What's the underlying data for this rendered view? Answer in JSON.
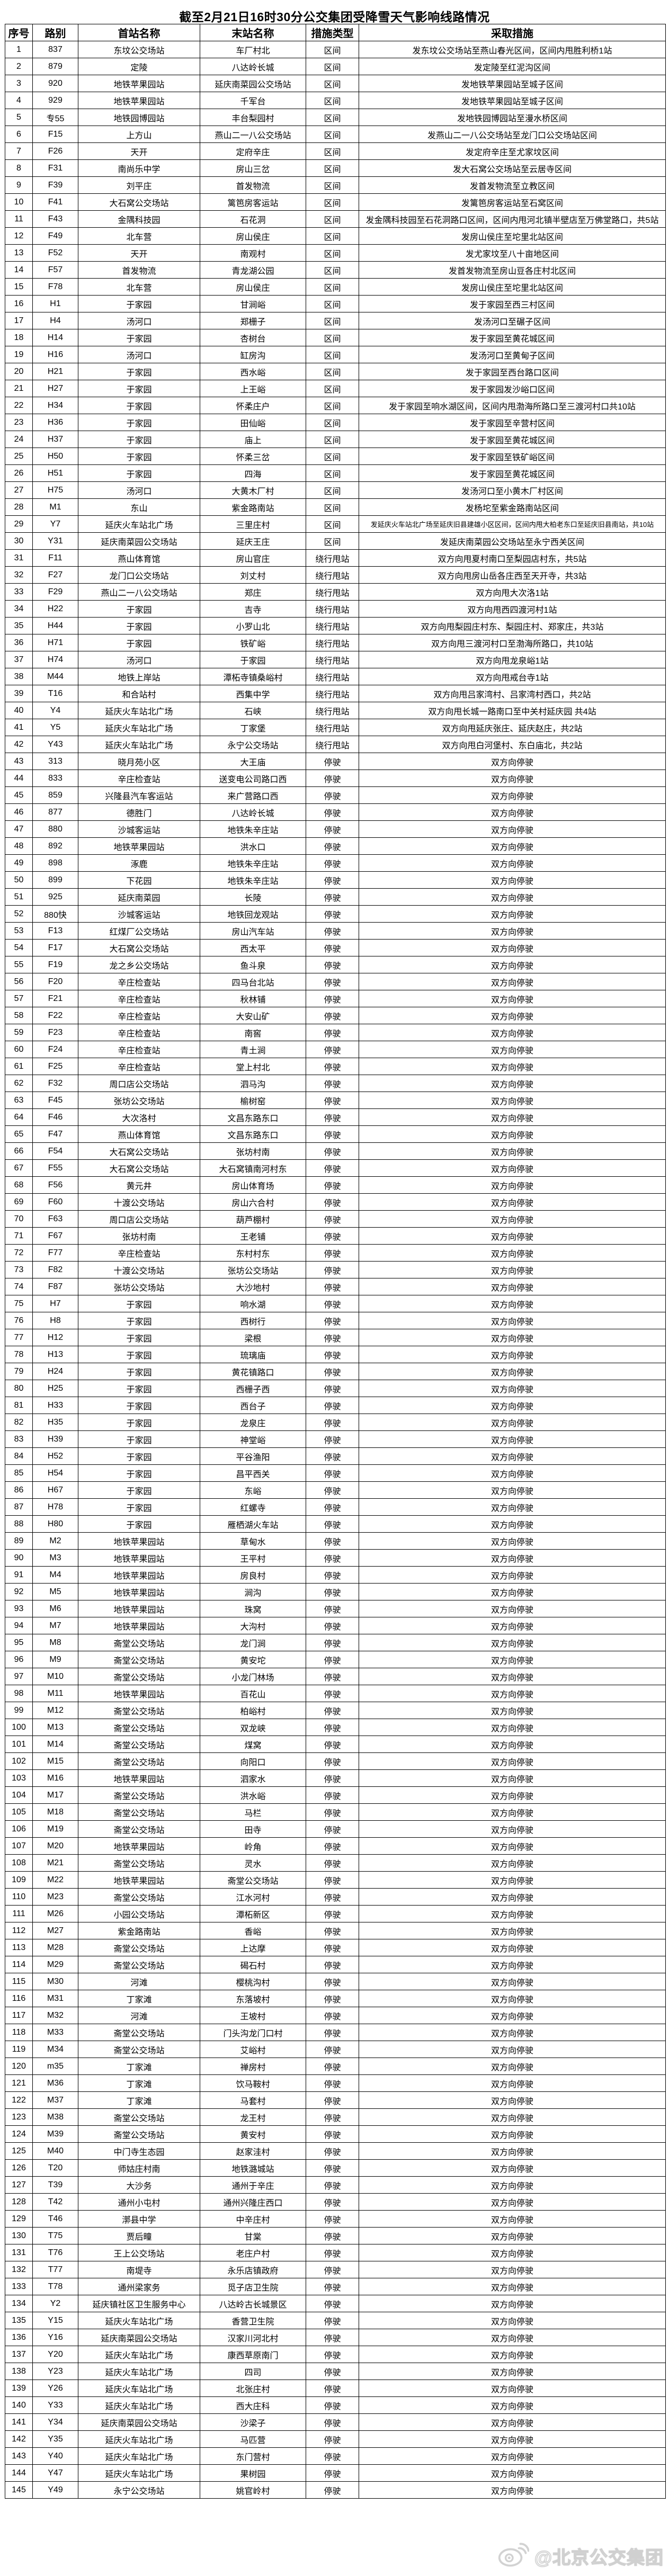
{
  "title": "截至2月21日16时30分公交集团受降雪天气影响线路情况",
  "watermark": {
    "icon": "weibo-icon",
    "text": "@北京公交集团"
  },
  "colors": {
    "border": "#000000",
    "text": "#000000",
    "background": "#ffffff",
    "watermark": "#c8c8c8"
  },
  "table": {
    "headers": [
      "序号",
      "路别",
      "首站名称",
      "末站名称",
      "措施类型",
      "采取措施"
    ],
    "rows": [
      [
        1,
        "837",
        "东坟公交场站",
        "车厂村北",
        "区间",
        "发东坟公交场站至燕山春光区间，区间内甩胜利桥1站"
      ],
      [
        2,
        "879",
        "定陵",
        "八达岭长城",
        "区间",
        "发定陵至红泥沟区间"
      ],
      [
        3,
        "920",
        "地铁苹果园站",
        "延庆南菜园公交场站",
        "区间",
        "发地铁苹果园站至城子区间"
      ],
      [
        4,
        "929",
        "地铁苹果园站",
        "千军台",
        "区间",
        "发地铁苹果园站至城子区间"
      ],
      [
        5,
        "专55",
        "地铁园博园站",
        "丰台梨园村",
        "区间",
        "发地铁园博园站至漫水桥区间"
      ],
      [
        6,
        "F15",
        "上方山",
        "燕山二一八公交场站",
        "区间",
        "发燕山二一八公交场站至龙门口公交场站区间"
      ],
      [
        7,
        "F26",
        "天开",
        "定府辛庄",
        "区间",
        "发定府辛庄至尤家坟区间"
      ],
      [
        8,
        "F31",
        "南尚乐中学",
        "房山三岔",
        "区间",
        "发大石窝公交场站至云居寺区间"
      ],
      [
        9,
        "F39",
        "刘平庄",
        "首发物流",
        "区间",
        "发首发物流至立教区间"
      ],
      [
        10,
        "F41",
        "大石窝公交场站",
        "篱笆房客运站",
        "区间",
        "发篱笆房客运站至石窝区间"
      ],
      [
        11,
        "F43",
        "金隅科技园",
        "石花洞",
        "区间",
        "发金隅科技园至石花洞路口区间，区间内甩河北镇半壁店至万佛堂路口，共5站"
      ],
      [
        12,
        "F49",
        "北车营",
        "房山侯庄",
        "区间",
        "发房山侯庄至坨里北站区间"
      ],
      [
        13,
        "F52",
        "天开",
        "南观村",
        "区间",
        "发尤家坟至八十亩地区间"
      ],
      [
        14,
        "F57",
        "首发物流",
        "青龙湖公园",
        "区间",
        "发首发物流至房山豆各庄村北区间"
      ],
      [
        15,
        "F78",
        "北车营",
        "房山侯庄",
        "区间",
        "发房山侯庄至坨里北站区间"
      ],
      [
        16,
        "H1",
        "于家园",
        "甘涧峪",
        "区间",
        "发于家园至西三村区间"
      ],
      [
        17,
        "H4",
        "汤河口",
        "郑栅子",
        "区间",
        "发汤河口至碾子区间"
      ],
      [
        18,
        "H14",
        "于家园",
        "杏树台",
        "区间",
        "发于家园至黄花城区间"
      ],
      [
        19,
        "H16",
        "汤河口",
        "缸房沟",
        "区间",
        "发汤河口至黄甸子区间"
      ],
      [
        20,
        "H21",
        "于家园",
        "西水峪",
        "区间",
        "发于家园至西台路口区间"
      ],
      [
        21,
        "H27",
        "于家园",
        "上王峪",
        "区间",
        "发于家园发沙峪口区间"
      ],
      [
        22,
        "H34",
        "于家园",
        "怀柔庄户",
        "区间",
        "发于家园至响水湖区间，区间内甩渤海所路口至三渡河村口共10站"
      ],
      [
        23,
        "H36",
        "于家园",
        "田仙峪",
        "区间",
        "发于家园至辛营村区间"
      ],
      [
        24,
        "H37",
        "于家园",
        "庙上",
        "区间",
        "发于家园至黄花城区间"
      ],
      [
        25,
        "H50",
        "于家园",
        "怀柔三岔",
        "区间",
        "发于家园至铁矿峪区间"
      ],
      [
        26,
        "H51",
        "于家园",
        "四海",
        "区间",
        "发于家园至黄花城区间"
      ],
      [
        27,
        "H75",
        "汤河口",
        "大黄木厂村",
        "区间",
        "发汤河口至小黄木厂村区间"
      ],
      [
        28,
        "M1",
        "东山",
        "紫金路南站",
        "区间",
        "发杨坨至紫金路南站区间"
      ],
      [
        29,
        "Y7",
        "延庆火车站北广场",
        "三里庄村",
        "区间",
        "发延庆火车站北广场至延庆旧县建雄小区区间，区间内甩大柏老东口至延庆旧县南站，共10站"
      ],
      [
        30,
        "Y31",
        "延庆南菜园公交场站",
        "延庆王庄",
        "区间",
        "发延庆南菜园公交场站至永宁西关区间"
      ],
      [
        31,
        "F11",
        "燕山体育馆",
        "房山官庄",
        "绕行甩站",
        "双方向甩夏村南口至梨园店村东，共5站"
      ],
      [
        32,
        "F27",
        "龙门口公交场站",
        "刘丈村",
        "绕行甩站",
        "双方向甩房山岳各庄西至天开寺，共3站"
      ],
      [
        33,
        "F29",
        "燕山二一八公交场站",
        "郑庄",
        "绕行甩站",
        "双方向甩大次洛1站"
      ],
      [
        34,
        "H22",
        "于家园",
        "吉寺",
        "绕行甩站",
        "双方向甩西四渡河村1站"
      ],
      [
        35,
        "H44",
        "于家园",
        "小罗山北",
        "绕行甩站",
        "双方向甩梨园庄村东、梨园庄村、郑家庄，共3站"
      ],
      [
        36,
        "H71",
        "于家园",
        "铁矿峪",
        "绕行甩站",
        "双方向甩三渡河村口至渤海所路口，共10站"
      ],
      [
        37,
        "H74",
        "汤河口",
        "于家园",
        "绕行甩站",
        "双方向甩龙泉峪1站"
      ],
      [
        38,
        "M44",
        "地铁上岸站",
        "潭柘寺镇桑峪村",
        "绕行甩站",
        "双方向甩戒台寺1站"
      ],
      [
        39,
        "T16",
        "和合站村",
        "西集中学",
        "绕行甩站",
        "双方向甩吕家湾村、吕家湾村西口，共2站"
      ],
      [
        40,
        "Y4",
        "延庆火车站北广场",
        "石峡",
        "绕行甩站",
        "双方向甩长城一路南口至中关村延庆园 共4站"
      ],
      [
        41,
        "Y5",
        "延庆火车站北广场",
        "丁家堡",
        "绕行甩站",
        "双方向甩延庆张庄、延庆赵庄，共2站"
      ],
      [
        42,
        "Y43",
        "延庆火车站北广场",
        "永宁公交场站",
        "绕行甩站",
        "双方向甩白河堡村、东白庙北，共2站"
      ],
      [
        43,
        "313",
        "晓月苑小区",
        "大王庙",
        "停驶",
        "双方向停驶"
      ],
      [
        44,
        "833",
        "辛庄检查站",
        "送变电公司路口西",
        "停驶",
        "双方向停驶"
      ],
      [
        45,
        "859",
        "兴隆县汽车客运站",
        "来广营路口西",
        "停驶",
        "双方向停驶"
      ],
      [
        46,
        "877",
        "德胜门",
        "八达岭长城",
        "停驶",
        "双方向停驶"
      ],
      [
        47,
        "880",
        "沙城客运站",
        "地铁朱辛庄站",
        "停驶",
        "双方向停驶"
      ],
      [
        48,
        "892",
        "地铁苹果园站",
        "洪水口",
        "停驶",
        "双方向停驶"
      ],
      [
        49,
        "898",
        "涿鹿",
        "地铁朱辛庄站",
        "停驶",
        "双方向停驶"
      ],
      [
        50,
        "899",
        "下花园",
        "地铁朱辛庄站",
        "停驶",
        "双方向停驶"
      ],
      [
        51,
        "925",
        "延庆南菜园",
        "长陵",
        "停驶",
        "双方向停驶"
      ],
      [
        52,
        "880快",
        "沙城客运站",
        "地铁回龙观站",
        "停驶",
        "双方向停驶"
      ],
      [
        53,
        "F13",
        "红煤厂公交场站",
        "房山汽车站",
        "停驶",
        "双方向停驶"
      ],
      [
        54,
        "F17",
        "大石窝公交场站",
        "西太平",
        "停驶",
        "双方向停驶"
      ],
      [
        55,
        "F19",
        "龙之乡公交场站",
        "鱼斗泉",
        "停驶",
        "双方向停驶"
      ],
      [
        56,
        "F20",
        "辛庄检查站",
        "四马台北站",
        "停驶",
        "双方向停驶"
      ],
      [
        57,
        "F21",
        "辛庄检查站",
        "秋林铺",
        "停驶",
        "双方向停驶"
      ],
      [
        58,
        "F22",
        "辛庄检查站",
        "大安山矿",
        "停驶",
        "双方向停驶"
      ],
      [
        59,
        "F23",
        "辛庄检查站",
        "南窖",
        "停驶",
        "双方向停驶"
      ],
      [
        60,
        "F24",
        "辛庄检查站",
        "青土涧",
        "停驶",
        "双方向停驶"
      ],
      [
        61,
        "F25",
        "辛庄检查站",
        "堂上村北",
        "停驶",
        "双方向停驶"
      ],
      [
        62,
        "F32",
        "周口店公交场站",
        "泗马沟",
        "停驶",
        "双方向停驶"
      ],
      [
        63,
        "F45",
        "张坊公交场站",
        "榆树窑",
        "停驶",
        "双方向停驶"
      ],
      [
        64,
        "F46",
        "大次洛村",
        "文昌东路东口",
        "停驶",
        "双方向停驶"
      ],
      [
        65,
        "F47",
        "燕山体育馆",
        "文昌东路东口",
        "停驶",
        "双方向停驶"
      ],
      [
        66,
        "F54",
        "大石窝公交场站",
        "张坊村南",
        "停驶",
        "双方向停驶"
      ],
      [
        67,
        "F55",
        "大石窝公交场站",
        "大石窝镇南河村东",
        "停驶",
        "双方向停驶"
      ],
      [
        68,
        "F56",
        "黄元井",
        "房山体育场",
        "停驶",
        "双方向停驶"
      ],
      [
        69,
        "F60",
        "十渡公交场站",
        "房山六合村",
        "停驶",
        "双方向停驶"
      ],
      [
        70,
        "F63",
        "周口店公交场站",
        "葫芦棚村",
        "停驶",
        "双方向停驶"
      ],
      [
        71,
        "F67",
        "张坊村南",
        "王老铺",
        "停驶",
        "双方向停驶"
      ],
      [
        72,
        "F77",
        "辛庄检查站",
        "东村村东",
        "停驶",
        "双方向停驶"
      ],
      [
        73,
        "F82",
        "十渡公交场站",
        "张坊公交场站",
        "停驶",
        "双方向停驶"
      ],
      [
        74,
        "F87",
        "张坊公交场站",
        "大沙地村",
        "停驶",
        "双方向停驶"
      ],
      [
        75,
        "H7",
        "于家园",
        "响水湖",
        "停驶",
        "双方向停驶"
      ],
      [
        76,
        "H8",
        "于家园",
        "西树行",
        "停驶",
        "双方向停驶"
      ],
      [
        77,
        "H12",
        "于家园",
        "梁根",
        "停驶",
        "双方向停驶"
      ],
      [
        78,
        "H13",
        "于家园",
        "琉璃庙",
        "停驶",
        "双方向停驶"
      ],
      [
        79,
        "H24",
        "于家园",
        "黄花镇路口",
        "停驶",
        "双方向停驶"
      ],
      [
        80,
        "H25",
        "于家园",
        "西栅子西",
        "停驶",
        "双方向停驶"
      ],
      [
        81,
        "H33",
        "于家园",
        "西台子",
        "停驶",
        "双方向停驶"
      ],
      [
        82,
        "H35",
        "于家园",
        "龙泉庄",
        "停驶",
        "双方向停驶"
      ],
      [
        83,
        "H39",
        "于家园",
        "神堂峪",
        "停驶",
        "双方向停驶"
      ],
      [
        84,
        "H52",
        "于家园",
        "平谷渔阳",
        "停驶",
        "双方向停驶"
      ],
      [
        85,
        "H54",
        "于家园",
        "昌平西关",
        "停驶",
        "双方向停驶"
      ],
      [
        86,
        "H67",
        "于家园",
        "东峪",
        "停驶",
        "双方向停驶"
      ],
      [
        87,
        "H78",
        "于家园",
        "红螺寺",
        "停驶",
        "双方向停驶"
      ],
      [
        88,
        "H80",
        "于家园",
        "雁栖湖火车站",
        "停驶",
        "双方向停驶"
      ],
      [
        89,
        "M2",
        "地铁苹果园站",
        "草甸水",
        "停驶",
        "双方向停驶"
      ],
      [
        90,
        "M3",
        "地铁苹果园站",
        "王平村",
        "停驶",
        "双方向停驶"
      ],
      [
        91,
        "M4",
        "地铁苹果园站",
        "房良村",
        "停驶",
        "双方向停驶"
      ],
      [
        92,
        "M5",
        "地铁苹果园站",
        "涧沟",
        "停驶",
        "双方向停驶"
      ],
      [
        93,
        "M6",
        "地铁苹果园站",
        "珠窝",
        "停驶",
        "双方向停驶"
      ],
      [
        94,
        "M7",
        "地铁苹果园站",
        "大沟村",
        "停驶",
        "双方向停驶"
      ],
      [
        95,
        "M8",
        "斋堂公交场站",
        "龙门涧",
        "停驶",
        "双方向停驶"
      ],
      [
        96,
        "M9",
        "斋堂公交场站",
        "黄安坨",
        "停驶",
        "双方向停驶"
      ],
      [
        97,
        "M10",
        "斋堂公交场站",
        "小龙门林场",
        "停驶",
        "双方向停驶"
      ],
      [
        98,
        "M11",
        "地铁苹果园站",
        "百花山",
        "停驶",
        "双方向停驶"
      ],
      [
        99,
        "M12",
        "斋堂公交场站",
        "柏峪村",
        "停驶",
        "双方向停驶"
      ],
      [
        100,
        "M13",
        "斋堂公交场站",
        "双龙峡",
        "停驶",
        "双方向停驶"
      ],
      [
        101,
        "M14",
        "斋堂公交场站",
        "煤窝",
        "停驶",
        "双方向停驶"
      ],
      [
        102,
        "M15",
        "斋堂公交场站",
        "向阳口",
        "停驶",
        "双方向停驶"
      ],
      [
        103,
        "M16",
        "地铁苹果园站",
        "泗家水",
        "停驶",
        "双方向停驶"
      ],
      [
        104,
        "M17",
        "斋堂公交场站",
        "洪水峪",
        "停驶",
        "双方向停驶"
      ],
      [
        105,
        "M18",
        "斋堂公交场站",
        "马栏",
        "停驶",
        "双方向停驶"
      ],
      [
        106,
        "M19",
        "斋堂公交场站",
        "田寺",
        "停驶",
        "双方向停驶"
      ],
      [
        107,
        "M20",
        "地铁苹果园站",
        "岭角",
        "停驶",
        "双方向停驶"
      ],
      [
        108,
        "M21",
        "斋堂公交场站",
        "灵水",
        "停驶",
        "双方向停驶"
      ],
      [
        109,
        "M22",
        "地铁苹果园站",
        "斋堂公交场站",
        "停驶",
        "双方向停驶"
      ],
      [
        110,
        "M23",
        "斋堂公交场站",
        "江水河村",
        "停驶",
        "双方向停驶"
      ],
      [
        111,
        "M26",
        "小园公交场站",
        "潭柘新区",
        "停驶",
        "双方向停驶"
      ],
      [
        112,
        "M27",
        "紫金路南站",
        "香峪",
        "停驶",
        "双方向停驶"
      ],
      [
        113,
        "M28",
        "斋堂公交场站",
        "上达摩",
        "停驶",
        "双方向停驶"
      ],
      [
        114,
        "M29",
        "斋堂公交场站",
        "碣石村",
        "停驶",
        "双方向停驶"
      ],
      [
        115,
        "M30",
        "河滩",
        "樱桃沟村",
        "停驶",
        "双方向停驶"
      ],
      [
        116,
        "M31",
        "丁家滩",
        "东落坡村",
        "停驶",
        "双方向停驶"
      ],
      [
        117,
        "M32",
        "河滩",
        "王坡村",
        "停驶",
        "双方向停驶"
      ],
      [
        118,
        "M33",
        "斋堂公交场站",
        "门头沟龙门口村",
        "停驶",
        "双方向停驶"
      ],
      [
        119,
        "M34",
        "斋堂公交场站",
        "艾峪村",
        "停驶",
        "双方向停驶"
      ],
      [
        120,
        "m35",
        "丁家滩",
        "禅房村",
        "停驶",
        "双方向停驶"
      ],
      [
        121,
        "M36",
        "丁家滩",
        "饮马鞍村",
        "停驶",
        "双方向停驶"
      ],
      [
        122,
        "M37",
        "丁家滩",
        "马套村",
        "停驶",
        "双方向停驶"
      ],
      [
        123,
        "M38",
        "斋堂公交场站",
        "龙王村",
        "停驶",
        "双方向停驶"
      ],
      [
        124,
        "M39",
        "斋堂公交场站",
        "黄安村",
        "停驶",
        "双方向停驶"
      ],
      [
        125,
        "M40",
        "中门寺生态园",
        "赵家洼村",
        "停驶",
        "双方向停驶"
      ],
      [
        126,
        "T20",
        "师姑庄村南",
        "地铁潞城站",
        "停驶",
        "双方向停驶"
      ],
      [
        127,
        "T39",
        "大沙务",
        "通州于辛庄",
        "停驶",
        "双方向停驶"
      ],
      [
        128,
        "T42",
        "通州小屯村",
        "通州兴隆庄西口",
        "停驶",
        "双方向停驶"
      ],
      [
        129,
        "T46",
        "漷县中学",
        "中辛庄村",
        "停驶",
        "双方向停驶"
      ],
      [
        130,
        "T75",
        "贾后疃",
        "甘棠",
        "停驶",
        "双方向停驶"
      ],
      [
        131,
        "T76",
        "王上公交场站",
        "老庄户村",
        "停驶",
        "双方向停驶"
      ],
      [
        132,
        "T77",
        "南堤寺",
        "永乐店镇政府",
        "停驶",
        "双方向停驶"
      ],
      [
        133,
        "T78",
        "通州梁家务",
        "觅子店卫生院",
        "停驶",
        "双方向停驶"
      ],
      [
        134,
        "Y2",
        "延庆镇社区卫生服务中心",
        "八达岭古长城景区",
        "停驶",
        "双方向停驶"
      ],
      [
        135,
        "Y15",
        "延庆火车站北广场",
        "香营卫生院",
        "停驶",
        "双方向停驶"
      ],
      [
        136,
        "Y16",
        "延庆南菜园公交场站",
        "汉家川河北村",
        "停驶",
        "双方向停驶"
      ],
      [
        137,
        "Y20",
        "延庆火车站北广场",
        "康西草原南门",
        "停驶",
        "双方向停驶"
      ],
      [
        138,
        "Y23",
        "延庆火车站北广场",
        "四司",
        "停驶",
        "双方向停驶"
      ],
      [
        139,
        "Y26",
        "延庆火车站北广场",
        "北张庄村",
        "停驶",
        "双方向停驶"
      ],
      [
        140,
        "Y33",
        "延庆火车站北广场",
        "西大庄科",
        "停驶",
        "双方向停驶"
      ],
      [
        141,
        "Y34",
        "延庆南菜园公交场站",
        "沙梁子",
        "停驶",
        "双方向停驶"
      ],
      [
        142,
        "Y35",
        "延庆火车站北广场",
        "马匹营",
        "停驶",
        "双方向停驶"
      ],
      [
        143,
        "Y40",
        "延庆火车站北广场",
        "东门营村",
        "停驶",
        "双方向停驶"
      ],
      [
        144,
        "Y47",
        "延庆火车站北广场",
        "果树园",
        "停驶",
        "双方向停驶"
      ],
      [
        145,
        "Y49",
        "永宁公交场站",
        "姚官岭村",
        "停驶",
        "双方向停驶"
      ]
    ]
  }
}
